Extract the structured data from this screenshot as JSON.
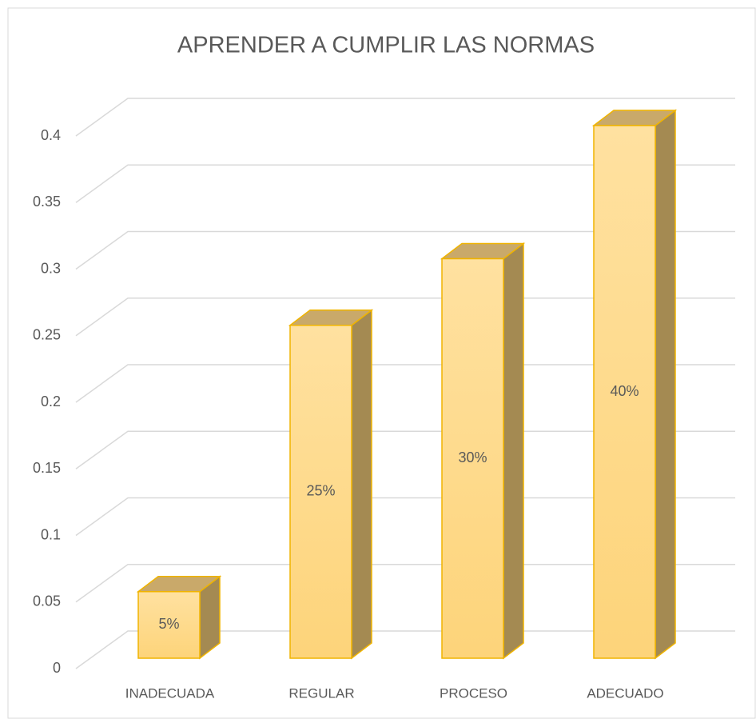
{
  "chart_data": {
    "type": "bar3d",
    "title": "APRENDER  A CUMPLIR LAS NORMAS",
    "categories": [
      "INADECUADA",
      "REGULAR",
      "PROCESO",
      "ADECUADO"
    ],
    "values": [
      0.05,
      0.25,
      0.3,
      0.4
    ],
    "value_labels": [
      "5%",
      "25%",
      "30%",
      "40%"
    ],
    "color": "#fdd98a",
    "ylim": [
      0,
      0.4
    ],
    "yticks": [
      0,
      0.05,
      0.1,
      0.15,
      0.2,
      0.25,
      0.3,
      0.35,
      0.4
    ],
    "grid": true
  }
}
